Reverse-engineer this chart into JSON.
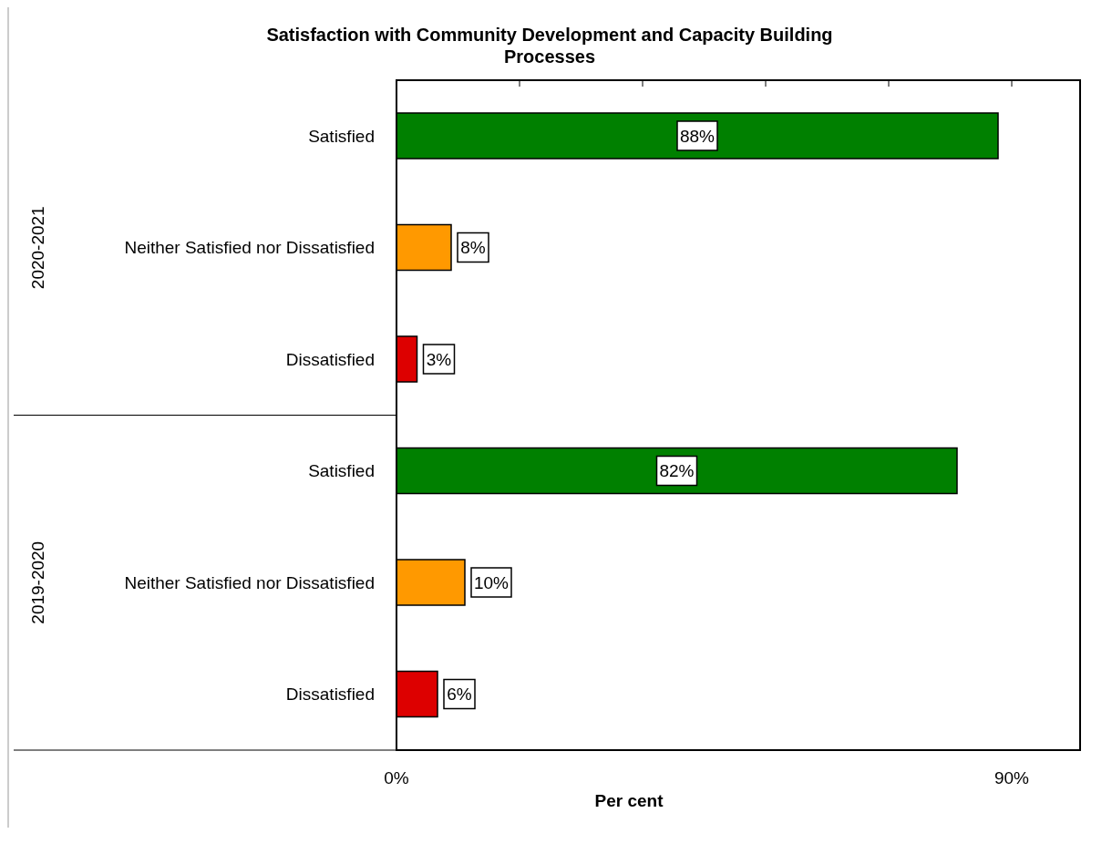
{
  "chart_data": {
    "type": "bar",
    "orientation": "horizontal",
    "title": "Satisfaction with Community Development and Capacity Building Processes",
    "xlabel": "Per cent",
    "categories": [
      "Satisfied",
      "Neither Satisfied nor Dissatisfied",
      "Dissatisfied",
      "Satisfied",
      "Neither Satisfied nor Dissatisfied",
      "Dissatisfied"
    ],
    "values": [
      88,
      8,
      3,
      82,
      10,
      6
    ],
    "colors": [
      "#008000",
      "#ff9900",
      "#dd0000",
      "#008000",
      "#ff9900",
      "#dd0000"
    ],
    "value_labels": [
      "88%",
      "8%",
      "3%",
      "82%",
      "10%",
      "6%"
    ],
    "xlim": [
      0,
      100
    ],
    "xticks": [
      {
        "value": 0,
        "label": "0%"
      },
      {
        "value": 18,
        "label": null
      },
      {
        "value": 36,
        "label": null
      },
      {
        "value": 54,
        "label": null
      },
      {
        "value": 72,
        "label": null
      },
      {
        "value": 90,
        "label": "90%"
      }
    ],
    "annotations": [
      "2020-2021",
      "2019-2020"
    ],
    "grid": false,
    "legend": false
  }
}
